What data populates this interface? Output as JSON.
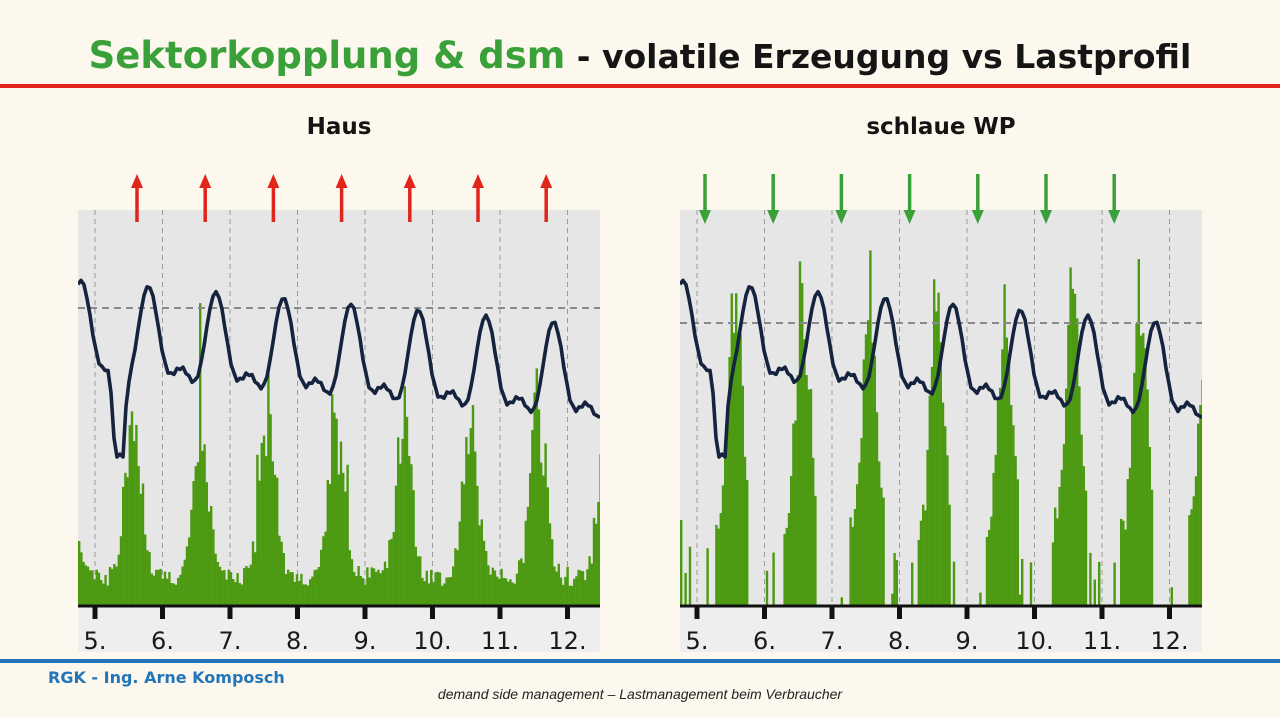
{
  "title": {
    "highlight": "Sektorkopplung & dsm",
    "rest": " - volatile Erzeugung vs Lastprofil"
  },
  "colors": {
    "accent_green": "#3aa03a",
    "bar_green": "#4c9a12",
    "curve": "#15233f",
    "red_rule": "#e1251b",
    "blue_rule": "#2275b8",
    "plot_background": "#e6e6e6"
  },
  "footer": {
    "author": "RGK - Ing. Arne Komposch",
    "subtitle": "demand side management – Lastmanagement beim Verbraucher"
  },
  "chart_data": [
    {
      "type": "bar",
      "title": "Haus",
      "x_tick_labels": [
        "5.",
        "6.",
        "7.",
        "8.",
        "9.",
        "10.",
        "11.",
        "12."
      ],
      "marker": "red up arrow",
      "marker_count": 7,
      "series": [
        {
          "kind": "bars",
          "color": "#4c9a12"
        },
        {
          "kind": "line",
          "color": "#15233f"
        }
      ],
      "reference_line": "dashed horizontal",
      "grid": true
    },
    {
      "type": "bar",
      "title": "schlaue WP",
      "x_tick_labels": [
        "5.",
        "6.",
        "7.",
        "8.",
        "9.",
        "10.",
        "11.",
        "12."
      ],
      "marker": "green down arrow",
      "marker_count": 7,
      "series": [
        {
          "kind": "bars",
          "color": "#4c9a12"
        },
        {
          "kind": "line",
          "color": "#15233f"
        }
      ],
      "reference_line": "dashed horizontal",
      "grid": true
    }
  ]
}
